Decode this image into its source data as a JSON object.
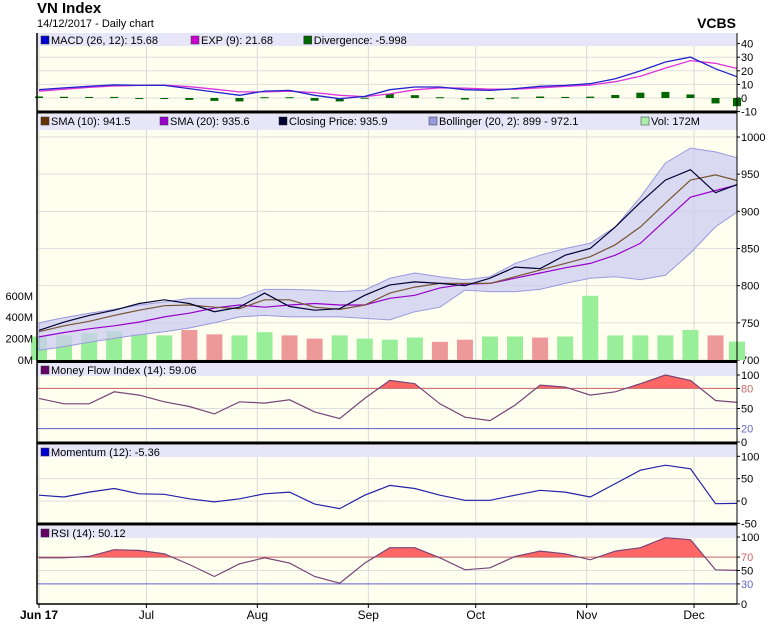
{
  "header": {
    "title": "VN Index",
    "subtitle": "14/12/2017 - Daily chart",
    "brand": "VCBS"
  },
  "chart_data": {
    "type": "line",
    "x_range": [
      "2017-06-01",
      "2017-12-13"
    ],
    "x_ticks": [
      {
        "date": "2017-06-01",
        "label": "Jun 17"
      },
      {
        "date": "2017-07-01",
        "label": "Jul"
      },
      {
        "date": "2017-08-01",
        "label": "Aug"
      },
      {
        "date": "2017-09-01",
        "label": "Sep"
      },
      {
        "date": "2017-10-01",
        "label": "Oct"
      },
      {
        "date": "2017-11-01",
        "label": "Nov"
      },
      {
        "date": "2017-12-01",
        "label": "Dec"
      }
    ],
    "dates": [
      "2017-06-01",
      "2017-06-08",
      "2017-06-15",
      "2017-06-22",
      "2017-06-29",
      "2017-07-06",
      "2017-07-13",
      "2017-07-20",
      "2017-07-27",
      "2017-08-03",
      "2017-08-10",
      "2017-08-17",
      "2017-08-24",
      "2017-08-31",
      "2017-09-07",
      "2017-09-14",
      "2017-09-21",
      "2017-09-28",
      "2017-10-05",
      "2017-10-12",
      "2017-10-19",
      "2017-10-26",
      "2017-11-02",
      "2017-11-09",
      "2017-11-16",
      "2017-11-23",
      "2017-11-30",
      "2017-12-07",
      "2017-12-13"
    ],
    "panels": {
      "macd": {
        "legend": [
          {
            "label": "MACD (26, 12): 15.68",
            "color": "#0000cc"
          },
          {
            "label": "EXP (9): 21.68",
            "color": "#cc00cc"
          },
          {
            "label": "Divergence: -5.998",
            "color": "#006600"
          }
        ],
        "ylim": [
          -10,
          40
        ],
        "y_ticks": [
          "40",
          "30",
          "20",
          "10",
          "0",
          "-10"
        ],
        "series": {
          "macd": [
            6.1,
            7.4,
            8.6,
            9.6,
            9.3,
            9.3,
            6.9,
            4.4,
            2,
            5.1,
            5.6,
            2,
            -0.5,
            1.2,
            6.1,
            8.1,
            8.1,
            6.1,
            5.6,
            6.9,
            8.6,
            9.3,
            10.5,
            14.2,
            19.9,
            26.5,
            30.1,
            21.5,
            15.68
          ],
          "exp": [
            5,
            6.5,
            7.8,
            8.8,
            9.3,
            9.4,
            8.3,
            6.5,
            4.5,
            4.5,
            5,
            4,
            2,
            1,
            3,
            6,
            7.5,
            7.2,
            6.5,
            6.5,
            7.5,
            8.5,
            9.5,
            12,
            16,
            22,
            27.5,
            25.5,
            21.68
          ],
          "divergence": [
            1.1,
            0.9,
            0.8,
            0.8,
            0,
            -0.1,
            -1.4,
            -2.1,
            -2.5,
            0.6,
            0.6,
            -2,
            -2.5,
            0.2,
            3.1,
            2.1,
            0.6,
            -1.1,
            -0.9,
            0.4,
            1.1,
            0.8,
            1,
            2.2,
            3.9,
            4.5,
            2.6,
            -4,
            -6.0
          ]
        }
      },
      "price": {
        "legend": [
          {
            "label": "SMA (10): 941.5",
            "color": "#663300"
          },
          {
            "label": "SMA (20): 935.6",
            "color": "#9900cc"
          },
          {
            "label": "Closing Price: 935.9",
            "color": "#000033"
          },
          {
            "label": "Bollinger (20, 2): 899 - 972.1",
            "color": "#9999dd"
          },
          {
            "label": "Vol: 172M",
            "color": "#aaeeaa"
          }
        ],
        "ylim": [
          700,
          1000
        ],
        "y_ticks": [
          "1000",
          "950",
          "900",
          "850",
          "800",
          "750",
          "700"
        ],
        "vol_ylim_M": [
          0,
          600
        ],
        "vol_ticks": [
          "600M",
          "400M",
          "200M",
          "0M"
        ],
        "series": {
          "close": [
            740,
            751,
            760,
            767,
            776,
            781,
            776,
            765,
            771,
            790,
            772,
            767,
            769,
            787,
            801,
            805,
            803,
            800,
            810,
            825,
            823,
            841,
            850,
            879,
            912,
            942,
            956,
            925,
            935.9
          ],
          "sma10": [
            738,
            746,
            752,
            760,
            767,
            773,
            774,
            771,
            769,
            781,
            781,
            771,
            768,
            774,
            790,
            798,
            803,
            803,
            803,
            812,
            821,
            830,
            839,
            855,
            879,
            911,
            942,
            949,
            941.5
          ],
          "sma20": [
            731,
            737,
            742,
            746,
            751,
            758,
            763,
            770,
            774,
            771,
            774,
            776,
            774,
            774,
            783,
            787,
            797,
            802,
            803,
            810,
            817,
            824,
            830,
            841,
            857,
            888,
            919,
            928,
            935.6
          ],
          "boll_upper": [
            750,
            757,
            763,
            768,
            774,
            778,
            783,
            783,
            783,
            795,
            795,
            794,
            792,
            794,
            810,
            817,
            812,
            808,
            812,
            830,
            841,
            850,
            857,
            879,
            919,
            965,
            985,
            980,
            972.1
          ],
          "boll_lower": [
            713,
            718,
            724,
            729,
            734,
            738,
            743,
            750,
            758,
            760,
            758,
            758,
            758,
            756,
            754,
            765,
            771,
            794,
            792,
            792,
            795,
            803,
            810,
            812,
            808,
            814,
            844,
            879,
            899
          ],
          "volume_M": [
            220,
            230,
            250,
            270,
            240,
            230,
            280,
            240,
            230,
            260,
            230,
            200,
            230,
            200,
            190,
            210,
            170,
            190,
            220,
            220,
            210,
            220,
            600,
            230,
            230,
            230,
            280,
            230,
            172
          ]
        },
        "colors": {
          "up": "#99ee99",
          "down": "#ee9999",
          "band": "#ccccf2"
        }
      },
      "mfi": {
        "legend": [
          {
            "label": "Money Flow Index (14): 59.06",
            "color": "#660066"
          }
        ],
        "ylim": [
          0,
          100
        ],
        "y_ticks": [
          "100",
          "80",
          "50",
          "20",
          "0"
        ],
        "overbought": 80,
        "oversold": 20,
        "series": {
          "mfi": [
            65,
            57,
            57,
            75,
            70,
            60,
            53,
            42,
            60,
            58,
            63,
            45,
            35,
            65,
            92,
            87,
            57,
            37,
            32,
            55,
            85,
            82,
            70,
            75,
            87,
            100,
            92,
            62,
            59.06
          ]
        }
      },
      "momentum": {
        "legend": [
          {
            "label": "Momentum (12): -5.36",
            "color": "#0000cc"
          }
        ],
        "ylim": [
          -50,
          100
        ],
        "y_ticks": [
          "100",
          "50",
          "0",
          "-50"
        ],
        "series": {
          "momentum": [
            13,
            9,
            20,
            28,
            16,
            15,
            5,
            -2,
            5,
            16,
            20,
            -7,
            -17,
            13,
            35,
            28,
            13,
            1.5,
            1.5,
            13,
            24,
            20,
            9,
            39,
            69,
            80,
            72,
            -6,
            -5.36
          ]
        }
      },
      "rsi": {
        "legend": [
          {
            "label": "RSI (14): 50.12",
            "color": "#660066"
          }
        ],
        "ylim": [
          0,
          100
        ],
        "y_ticks": [
          "100",
          "70",
          "50",
          "30",
          "0"
        ],
        "overbought": 70,
        "oversold": 30,
        "series": {
          "rsi": [
            69,
            69,
            71,
            81,
            80,
            75,
            59,
            41,
            60,
            69,
            61,
            41,
            31,
            61,
            84,
            84,
            69,
            51,
            54,
            71,
            79,
            75,
            66,
            79,
            84,
            99,
            96,
            51,
            50.12
          ]
        }
      }
    }
  }
}
